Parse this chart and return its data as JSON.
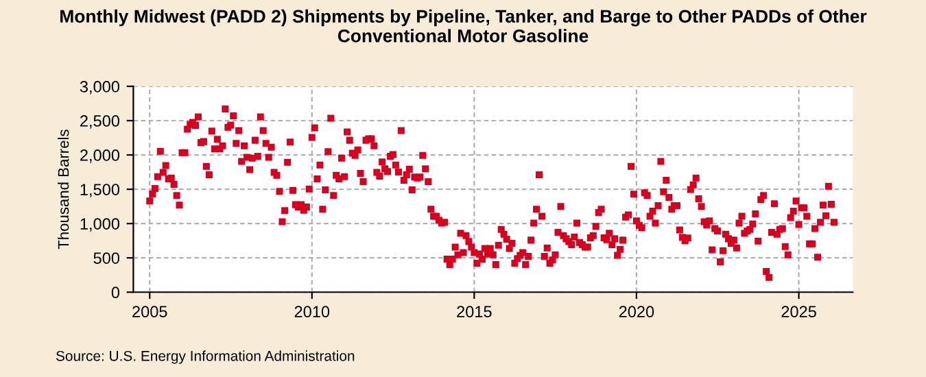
{
  "chart_data": {
    "type": "scatter",
    "title": "Monthly Midwest (PADD 2) Shipments by Pipeline, Tanker, and Barge to Other PADDs of Other\nConventional Motor Gasoline",
    "ylabel": "Thousand Barrels",
    "annotations": [
      "Source: U.S. Energy Information Administration"
    ],
    "x": [
      "2005-01",
      "2005-02",
      "2005-03",
      "2005-04",
      "2005-05",
      "2005-06",
      "2005-07",
      "2005-08",
      "2005-09",
      "2005-10",
      "2005-11",
      "2005-12",
      "2006-01",
      "2006-02",
      "2006-03",
      "2006-04",
      "2006-05",
      "2006-06",
      "2006-07",
      "2006-08",
      "2006-09",
      "2006-10",
      "2006-11",
      "2006-12",
      "2007-01",
      "2007-02",
      "2007-03",
      "2007-04",
      "2007-05",
      "2007-06",
      "2007-07",
      "2007-08",
      "2007-09",
      "2007-10",
      "2007-11",
      "2007-12",
      "2008-01",
      "2008-02",
      "2008-03",
      "2008-04",
      "2008-05",
      "2008-06",
      "2008-07",
      "2008-08",
      "2008-09",
      "2008-10",
      "2008-11",
      "2008-12",
      "2009-01",
      "2009-02",
      "2009-03",
      "2009-04",
      "2009-05",
      "2009-06",
      "2009-07",
      "2009-08",
      "2009-09",
      "2009-10",
      "2009-11",
      "2009-12",
      "2010-01",
      "2010-02",
      "2010-03",
      "2010-04",
      "2010-05",
      "2010-06",
      "2010-07",
      "2010-08",
      "2010-09",
      "2010-10",
      "2010-11",
      "2010-12",
      "2011-01",
      "2011-02",
      "2011-03",
      "2011-04",
      "2011-05",
      "2011-06",
      "2011-07",
      "2011-08",
      "2011-09",
      "2011-10",
      "2011-11",
      "2011-12",
      "2012-01",
      "2012-02",
      "2012-03",
      "2012-04",
      "2012-05",
      "2012-06",
      "2012-07",
      "2012-08",
      "2012-09",
      "2012-10",
      "2012-11",
      "2012-12",
      "2013-01",
      "2013-02",
      "2013-03",
      "2013-04",
      "2013-05",
      "2013-06",
      "2013-07",
      "2013-08",
      "2013-09",
      "2013-10",
      "2013-11",
      "2013-12",
      "2014-01",
      "2014-02",
      "2014-03",
      "2014-04",
      "2014-05",
      "2014-06",
      "2014-07",
      "2014-08",
      "2014-09",
      "2014-10",
      "2014-11",
      "2014-12",
      "2015-01",
      "2015-02",
      "2015-03",
      "2015-04",
      "2015-05",
      "2015-06",
      "2015-07",
      "2015-08",
      "2015-09",
      "2015-10",
      "2015-11",
      "2015-12",
      "2016-01",
      "2016-02",
      "2016-03",
      "2016-04",
      "2016-05",
      "2016-06",
      "2016-07",
      "2016-08",
      "2016-09",
      "2016-10",
      "2016-11",
      "2016-12",
      "2017-01",
      "2017-02",
      "2017-03",
      "2017-04",
      "2017-05",
      "2017-06",
      "2017-07",
      "2017-08",
      "2017-09",
      "2017-10",
      "2017-11",
      "2017-12",
      "2018-01",
      "2018-02",
      "2018-03",
      "2018-04",
      "2018-05",
      "2018-06",
      "2018-07",
      "2018-08",
      "2018-09",
      "2018-10",
      "2018-11",
      "2018-12",
      "2019-01",
      "2019-02",
      "2019-03",
      "2019-04",
      "2019-05",
      "2019-06",
      "2019-07",
      "2019-08",
      "2019-09",
      "2019-10",
      "2019-11",
      "2019-12",
      "2020-01",
      "2020-02",
      "2020-03",
      "2020-04",
      "2020-05",
      "2020-06",
      "2020-07",
      "2020-08",
      "2020-09",
      "2020-10",
      "2020-11",
      "2020-12",
      "2021-01",
      "2021-02",
      "2021-03",
      "2021-04",
      "2021-05",
      "2021-06",
      "2021-07",
      "2021-08",
      "2021-09",
      "2021-10",
      "2021-11",
      "2021-12",
      "2022-01",
      "2022-02",
      "2022-03",
      "2022-04",
      "2022-05",
      "2022-06",
      "2022-07",
      "2022-08",
      "2022-09",
      "2022-10",
      "2022-11",
      "2022-12",
      "2023-01",
      "2023-02",
      "2023-03",
      "2023-04",
      "2023-05",
      "2023-06",
      "2023-07",
      "2023-08",
      "2023-09",
      "2023-10",
      "2023-11",
      "2023-12",
      "2024-01",
      "2024-02",
      "2024-03",
      "2024-04",
      "2024-05",
      "2024-06",
      "2024-07",
      "2024-08",
      "2024-09",
      "2024-10",
      "2024-11",
      "2024-12",
      "2025-01",
      "2025-02",
      "2025-03",
      "2025-04",
      "2025-05",
      "2025-06",
      "2025-07",
      "2025-08",
      "2025-09",
      "2025-10",
      "2025-11",
      "2025-12",
      "2026-01",
      "2026-02"
    ],
    "series": [
      {
        "color": "#d7001e",
        "values": [
          1329,
          1430,
          1510,
          1684,
          2053,
          1745,
          1845,
          1650,
          1664,
          1570,
          1409,
          1268,
          2033,
          2033,
          2375,
          2442,
          2476,
          2429,
          2556,
          2180,
          2194,
          1832,
          1711,
          2348,
          2087,
          2228,
          2087,
          2134,
          2671,
          2402,
          2436,
          2570,
          2167,
          2355,
          1906,
          2134,
          1966,
          1785,
          1953,
          2214,
          1980,
          2556,
          2355,
          2167,
          1966,
          2113,
          1745,
          1704,
          1469,
          1027,
          1188,
          1892,
          2187,
          1483,
          1275,
          1241,
          1275,
          1194,
          1241,
          1503,
          2255,
          2396,
          1651,
          1852,
          1208,
          1490,
          2047,
          2536,
          1409,
          1704,
          1651,
          1953,
          1684,
          2335,
          2214,
          2026,
          1993,
          2073,
          1731,
          1610,
          2214,
          2234,
          2234,
          2134,
          1745,
          1691,
          1899,
          1798,
          1758,
          1980,
          2006,
          1852,
          1751,
          2355,
          1630,
          1711,
          1792,
          1490,
          1678,
          1664,
          1678,
          1993,
          1798,
          1610,
          1208,
          1107,
          1107,
          1047,
          1007,
          1020,
          483,
          403,
          483,
          658,
          544,
          859,
          577,
          825,
          738,
          658,
          577,
          423,
          557,
          483,
          637,
          557,
          637,
          544,
          403,
          684,
          913,
          845,
          772,
          637,
          711,
          423,
          490,
          537,
          577,
          403,
          523,
          758,
          1007,
          1208,
          1711,
          1107,
          523,
          644,
          423,
          470,
          544,
          872,
          1248,
          825,
          778,
          738,
          691,
          805,
          1007,
          725,
          691,
          658,
          658,
          792,
          825,
          960,
          1161,
          1208,
          792,
          765,
          859,
          691,
          778,
          537,
          624,
          758,
          1094,
          1127,
          1832,
          1429,
          1040,
          973,
          939,
          1449,
          1409,
          1107,
          1181,
          1007,
          1261,
          1906,
          1463,
          1630,
          1382,
          1208,
          1261,
          1261,
          906,
          800,
          750,
          790,
          1497,
          1563,
          1664,
          1362,
          1248,
          1027,
          980,
          1040,
          617,
          926,
          892,
          443,
          604,
          845,
          778,
          711,
          758,
          644,
          1007,
          1107,
          859,
          892,
          913,
          993,
          1141,
          745,
          1349,
          1409,
          302,
          215,
          872,
          1288,
          845,
          913,
          926,
          664,
          544,
          1087,
          1181,
          1329,
          986,
          1228,
          1228,
          1107,
          705,
          705,
          926,
          510,
          1020,
          1268,
          1114,
          1543,
          1281,
          1020
        ]
      }
    ],
    "marker": "square",
    "xlim": [
      "2004-07",
      "2026-09"
    ],
    "xticks": [
      "2005",
      "2010",
      "2015",
      "2020",
      "2025"
    ],
    "ylim": [
      0,
      3000
    ],
    "yticks": [
      0,
      {
        "value": 500,
        "label": "500"
      },
      {
        "value": 1000,
        "label": "1,000"
      },
      {
        "value": 1500,
        "label": "1,500"
      },
      {
        "value": 2000,
        "label": "2,000"
      },
      {
        "value": 2500,
        "label": "2,500"
      },
      {
        "value": 3000,
        "label": "3,000"
      }
    ],
    "grid": true,
    "legend": false
  }
}
